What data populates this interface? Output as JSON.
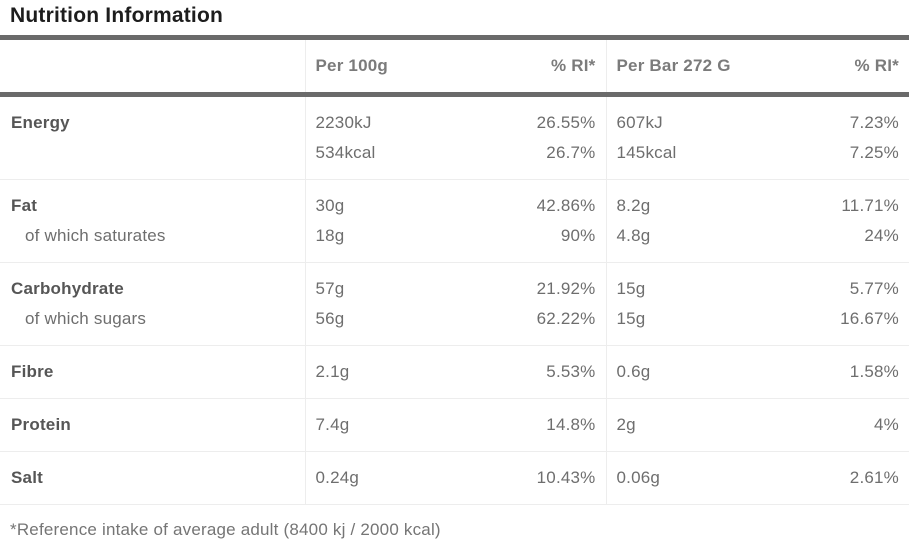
{
  "page": {
    "title": "Nutrition Information",
    "footnote": "*Reference intake of average adult (8400 kj / 2000 kcal)"
  },
  "table": {
    "columns": [
      "",
      "Per 100g",
      "% RI*",
      "Per Bar 272 G",
      "% RI*"
    ],
    "rows": [
      {
        "label": "Energy",
        "indent": false,
        "group_start": false,
        "continuation": false,
        "tight": true,
        "per_100g": "2230kJ",
        "ri_100g": "26.55%",
        "per_bar": "607kJ",
        "ri_bar": "7.23%"
      },
      {
        "label": "",
        "indent": false,
        "group_start": false,
        "continuation": true,
        "tight": false,
        "per_100g": "534kcal",
        "ri_100g": "26.7%",
        "per_bar": "145kcal",
        "ri_bar": "7.25%"
      },
      {
        "label": "Fat",
        "indent": false,
        "group_start": true,
        "continuation": false,
        "tight": true,
        "per_100g": "30g",
        "ri_100g": "42.86%",
        "per_bar": "8.2g",
        "ri_bar": "11.71%"
      },
      {
        "label": "of which saturates",
        "indent": true,
        "group_start": false,
        "continuation": true,
        "tight": false,
        "per_100g": "18g",
        "ri_100g": "90%",
        "per_bar": "4.8g",
        "ri_bar": "24%"
      },
      {
        "label": "Carbohydrate",
        "indent": false,
        "group_start": true,
        "continuation": false,
        "tight": true,
        "per_100g": "57g",
        "ri_100g": "21.92%",
        "per_bar": "15g",
        "ri_bar": "5.77%"
      },
      {
        "label": "of which sugars",
        "indent": true,
        "group_start": false,
        "continuation": true,
        "tight": false,
        "per_100g": "56g",
        "ri_100g": "62.22%",
        "per_bar": "15g",
        "ri_bar": "16.67%"
      },
      {
        "label": "Fibre",
        "indent": false,
        "group_start": true,
        "continuation": false,
        "tight": false,
        "per_100g": "2.1g",
        "ri_100g": "5.53%",
        "per_bar": "0.6g",
        "ri_bar": "1.58%"
      },
      {
        "label": "Protein",
        "indent": false,
        "group_start": true,
        "continuation": false,
        "tight": false,
        "per_100g": "7.4g",
        "ri_100g": "14.8%",
        "per_bar": "2g",
        "ri_bar": "4%"
      },
      {
        "label": "Salt",
        "indent": false,
        "group_start": true,
        "continuation": false,
        "tight": false,
        "per_100g": "0.24g",
        "ri_100g": "10.43%",
        "per_bar": "0.06g",
        "ri_bar": "2.61%"
      }
    ]
  },
  "colors": {
    "title_text": "#1d1d1d",
    "thick_border": "#6a6a6a",
    "light_border": "#ededed",
    "header_text": "#7b7b7b",
    "label_text": "#565656",
    "value_text": "#6e6e6e",
    "footnote_text": "#757575"
  }
}
